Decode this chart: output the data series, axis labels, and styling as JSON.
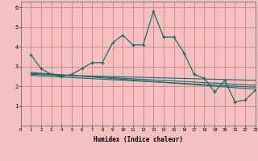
{
  "bg_color": "#f5c0c0",
  "grid_color": "#d08080",
  "line_color": "#1a6b6b",
  "x_label": "Humidex (Indice chaleur)",
  "xlim": [
    0,
    23
  ],
  "ylim": [
    0,
    6.3
  ],
  "yticks": [
    1,
    2,
    3,
    4,
    5,
    6
  ],
  "xticks": [
    0,
    1,
    2,
    3,
    4,
    5,
    6,
    7,
    8,
    9,
    10,
    11,
    12,
    13,
    14,
    15,
    16,
    17,
    18,
    19,
    20,
    21,
    22,
    23
  ],
  "main_x": [
    1,
    2,
    3,
    4,
    5,
    6,
    7,
    8,
    9,
    10,
    11,
    12,
    13,
    14,
    15,
    16,
    17,
    18,
    19,
    20,
    21,
    22,
    23
  ],
  "main_y": [
    3.6,
    2.9,
    2.6,
    2.5,
    2.6,
    2.9,
    3.2,
    3.2,
    4.2,
    4.6,
    4.1,
    4.1,
    5.8,
    4.5,
    4.5,
    3.7,
    2.6,
    2.4,
    1.7,
    2.3,
    1.2,
    1.3,
    1.8
  ],
  "line2_x": [
    1,
    23
  ],
  "line2_y": [
    2.65,
    2.05
  ],
  "line3_x": [
    1,
    23
  ],
  "line3_y": [
    2.7,
    1.85
  ],
  "line4_x": [
    1,
    23
  ],
  "line4_y": [
    2.6,
    2.3
  ],
  "line5_x": [
    1,
    23
  ],
  "line5_y": [
    2.55,
    1.95
  ]
}
